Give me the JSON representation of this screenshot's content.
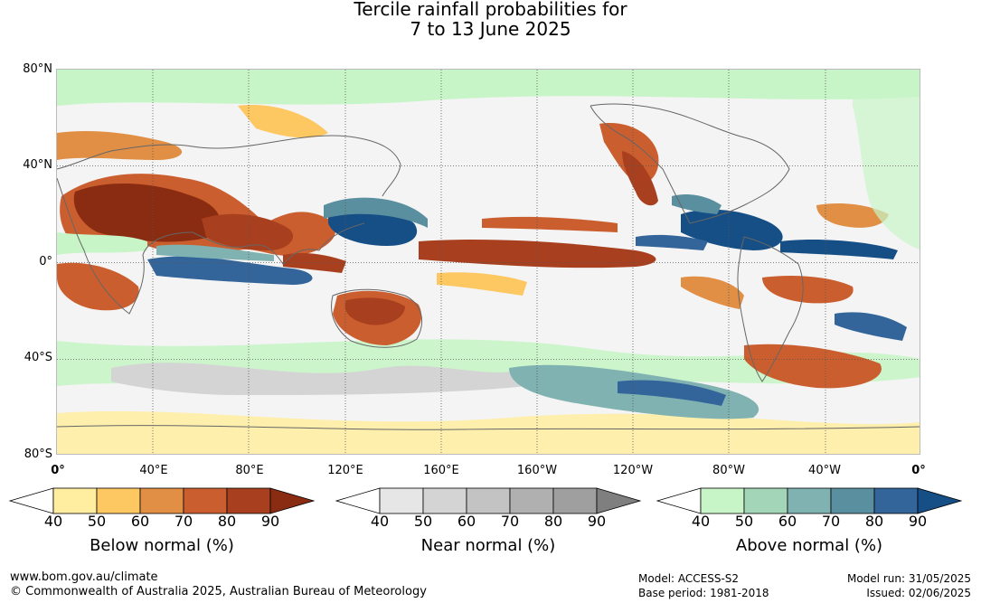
{
  "title": {
    "line1": "Tercile rainfall probabilities for",
    "line2": "7 to 13 June 2025"
  },
  "map": {
    "lat_labels": [
      "80°N",
      "40°N",
      "0°",
      "40°S",
      "80°S"
    ],
    "lon_labels": [
      "0°",
      "40°E",
      "80°E",
      "120°E",
      "160°E",
      "160°W",
      "120°W",
      "80°W",
      "40°W",
      "0°"
    ]
  },
  "legends": {
    "below": {
      "caption": "Below normal (%)",
      "ticks": [
        "40",
        "50",
        "60",
        "70",
        "80",
        "90"
      ],
      "colors": [
        "#ffffff",
        "#ffeda0",
        "#fdc762",
        "#e08f45",
        "#cb5e2e",
        "#a8401f",
        "#8a2c12"
      ]
    },
    "near": {
      "caption": "Near normal (%)",
      "ticks": [
        "40",
        "50",
        "60",
        "70",
        "80",
        "90"
      ],
      "colors": [
        "#ffffff",
        "#e6e6e6",
        "#d4d4d4",
        "#c3c3c3",
        "#b0b0b0",
        "#9f9f9f",
        "#7f7f7f"
      ]
    },
    "above": {
      "caption": "Above normal (%)",
      "ticks": [
        "40",
        "50",
        "60",
        "70",
        "80",
        "90"
      ],
      "colors": [
        "#ffffff",
        "#c8f5c8",
        "#a3d6b8",
        "#80b2b2",
        "#5a8fa0",
        "#33659a",
        "#164e86"
      ]
    }
  },
  "footer": {
    "url": "www.bom.gov.au/climate",
    "copyright": "© Commonwealth of Australia 2025, Australian Bureau of Meteorology",
    "model": "Model: ACCESS-S2",
    "base_period": "Base period: 1981-2018",
    "model_run": "Model run: 31/05/2025",
    "issued": "Issued: 02/06/2025"
  }
}
